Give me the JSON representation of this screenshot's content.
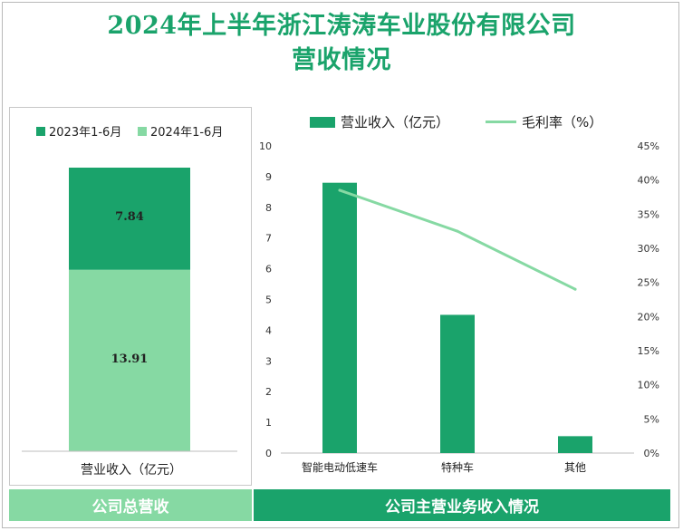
{
  "title_line1": "2024年上半年浙江涛涛车业股份有限公司",
  "title_line2": "营收情况",
  "colors": {
    "title": "#1aa36b",
    "dark_green": "#1aa36b",
    "light_green": "#86d9a3",
    "line": "#86d9a3",
    "footer_left": "#86d9a3",
    "footer_right": "#1aa36b"
  },
  "left_panel": {
    "legend": [
      "2023年1-6月",
      "2024年1-6月"
    ],
    "xlabel": "营业收入（亿元）",
    "footer": "公司总营收"
  },
  "right_panel": {
    "legend_bar": "营业收入（亿元）",
    "legend_line": "毛利率（%）",
    "footer": "公司主营业务收入情况"
  },
  "chart_data": [
    {
      "type": "bar",
      "stacked": true,
      "categories": [
        "营业收入（亿元）"
      ],
      "series": [
        {
          "name": "2024年1-6月",
          "values": [
            13.91
          ]
        },
        {
          "name": "2023年1-6月",
          "values": [
            7.84
          ]
        }
      ],
      "data_labels": [
        "7.84",
        "13.91"
      ],
      "legend_position": "top"
    },
    {
      "type": "bar",
      "categories": [
        "智能电动低速车",
        "特种车",
        "其他"
      ],
      "series": [
        {
          "name": "营业收入（亿元）",
          "type": "bar",
          "axis": "left",
          "values": [
            8.8,
            4.5,
            0.55
          ]
        },
        {
          "name": "毛利率（%）",
          "type": "line",
          "axis": "right",
          "values": [
            38.5,
            32.5,
            24.0
          ]
        }
      ],
      "y_left": {
        "ylim": [
          0,
          10
        ],
        "ticks": [
          "0",
          "1",
          "2",
          "3",
          "4",
          "5",
          "6",
          "7",
          "8",
          "9",
          "10"
        ]
      },
      "y_right": {
        "ylim": [
          0,
          45
        ],
        "ticks": [
          "0%",
          "5%",
          "10%",
          "15%",
          "20%",
          "25%",
          "30%",
          "35%",
          "40%",
          "45%"
        ]
      },
      "grid": false,
      "legend_position": "top"
    }
  ]
}
